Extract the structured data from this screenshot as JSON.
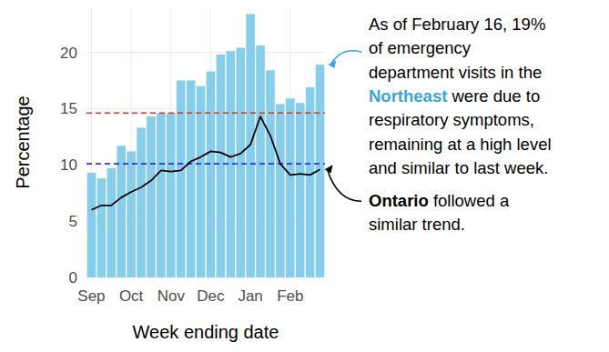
{
  "chart_data": {
    "type": "bar",
    "x_label": "Week ending date",
    "y_label": "Percentage",
    "categories": [
      "Sep",
      null,
      null,
      null,
      "Oct",
      null,
      null,
      null,
      "Nov",
      null,
      null,
      null,
      "Dec",
      null,
      null,
      null,
      "Jan",
      null,
      null,
      null,
      "Feb",
      null,
      null,
      null
    ],
    "series": [
      {
        "name": "Northeast",
        "type": "bar",
        "color": "#87ceeb",
        "values": [
          9.3,
          8.8,
          9.7,
          11.7,
          11.2,
          13.3,
          14.3,
          14.6,
          14.6,
          17.5,
          17.5,
          17.0,
          18.3,
          19.8,
          20.1,
          20.4,
          23.4,
          20.6,
          18.4,
          15.4,
          15.9,
          15.5,
          16.9,
          18.9
        ]
      },
      {
        "name": "Ontario",
        "type": "line",
        "color": "#000000",
        "values": [
          6.0,
          6.4,
          6.4,
          7.1,
          7.6,
          8.0,
          8.6,
          9.5,
          9.4,
          9.5,
          10.3,
          10.7,
          11.2,
          11.1,
          10.7,
          11.0,
          11.8,
          14.3,
          12.6,
          10.1,
          9.1,
          9.2,
          9.1,
          9.6
        ]
      }
    ],
    "reference_lines": [
      {
        "value": 14.6,
        "color": "#e0301e",
        "line_style": "dashed"
      },
      {
        "value": 10.1,
        "color": "#1a1ad6",
        "line_style": "dashed"
      }
    ],
    "ylim": [
      0,
      24
    ],
    "yticks": [
      0,
      5,
      10,
      15,
      20
    ],
    "grid": true,
    "annotations": [
      {
        "series": "Northeast",
        "color": "#3aa6dd",
        "lines": [
          [
            {
              "text": "As of February 16, 19%"
            }
          ],
          [
            {
              "text": "of emergency"
            }
          ],
          [
            {
              "text": "department visits in the"
            }
          ],
          [
            {
              "text": "Northeast",
              "emphasis": true
            },
            {
              "text": " were due to"
            }
          ],
          [
            {
              "text": "respiratory symptoms,"
            }
          ],
          [
            {
              "text": "remaining at a high level"
            }
          ],
          [
            {
              "text": "and similar to last week."
            }
          ]
        ]
      },
      {
        "series": "Ontario",
        "color": "#000000",
        "lines": [
          [
            {
              "text": "Ontario",
              "emphasis": true
            },
            {
              "text": " followed a"
            }
          ],
          [
            {
              "text": "similar trend."
            }
          ]
        ]
      }
    ]
  }
}
